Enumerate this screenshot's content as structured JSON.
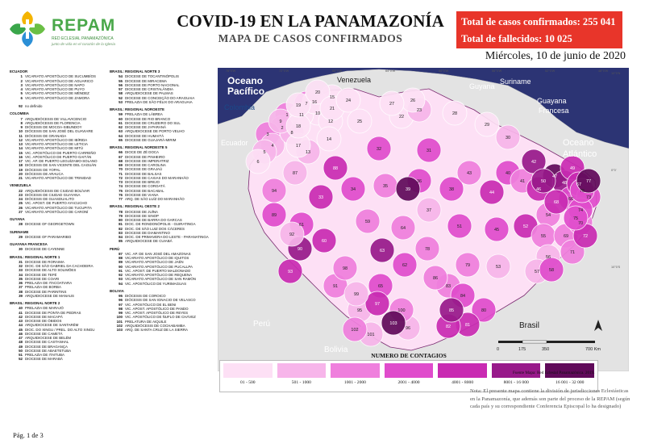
{
  "header": {
    "brand": "REPAM",
    "brand_sub": "RED ECLESIAL PANAMAZÓNICA",
    "brand_tag": "junto de vida en el corazón de la Iglesia",
    "title": "COVID-19 EN LA PANAMAZONÍA",
    "subtitle": "MAPA DE CASOS CONFIRMADOS",
    "total_cases": "Total de casos confirmados: 255 041",
    "total_deaths": "Total de fallecidos: 10 025",
    "date": "Miércoles, 10 de junio de 2020",
    "accent_color": "#e8352a"
  },
  "legend_left": {
    "col1": [
      {
        "group": "ECUADOR",
        "entries": [
          {
            "n": "1",
            "name": "VICARIATO APOSTÓLICO DE SUCUMBÍOS"
          },
          {
            "n": "2",
            "name": "VICARIATO APOSTÓLICO DE AGUARICO"
          },
          {
            "n": "3",
            "name": "VICARIATO APOSTÓLICO DE NAPO"
          },
          {
            "n": "4",
            "name": "VICARIATO APOSTÓLICO DE PUYO"
          },
          {
            "n": "5",
            "name": "VICARIATO APOSTÓLICO DE MÉNDEZ"
          },
          {
            "n": "6",
            "name": "VICARIATO APOSTÓLICO DE ZAMORA"
          },
          {
            "n": "",
            "name": ""
          },
          {
            "n": "92",
            "name": "no definido"
          }
        ]
      },
      {
        "group": "COLOMBIA",
        "entries": [
          {
            "n": "7",
            "name": "ARQUIDIÓCESIS DE VILLAVICENCIO"
          },
          {
            "n": "8",
            "name": "ARQUIDIÓCESIS DE FLORENCIA"
          },
          {
            "n": "9",
            "name": "DIÓCESIS DE MOCOA-SIBUNDOY"
          },
          {
            "n": "10",
            "name": "DIÓCESIS DE SAN JOSÉ DEL GUAVIARE"
          },
          {
            "n": "11",
            "name": "DIÓCESIS DE GRANADA"
          },
          {
            "n": "12",
            "name": "VICARIATO APOSTÓLICO DE IBÍRIDA"
          },
          {
            "n": "13",
            "name": "VICARIATO APOSTÓLICO DE LETICIA"
          },
          {
            "n": "14",
            "name": "VICARIATO APOSTÓLICO DE MITÚ"
          },
          {
            "n": "15",
            "name": "VIC. APOSTÓLICO DE PUERTO CARREÑO"
          },
          {
            "n": "16",
            "name": "VIC. APOSTÓLICO DE PUERTO GAITÁN"
          },
          {
            "n": "17",
            "name": "VIC. AP. DE PUERTO LEGUÍZAMO-SOLANO"
          },
          {
            "n": "18",
            "name": "DIÓCESIS DE SAN VICENTE DEL CAGUÁN"
          },
          {
            "n": "19",
            "name": "DIÓCESIS DE YOPAL"
          },
          {
            "n": "20",
            "name": "DIÓCESIS DE ARAUCA"
          },
          {
            "n": "21",
            "name": "VICARIATO APOSTÓLICO DE TRINIDAD"
          }
        ]
      },
      {
        "group": "VENEZUELA",
        "entries": [
          {
            "n": "22",
            "name": "ARQUIDIÓCESIS DE CIUDAD BOLÍVAR"
          },
          {
            "n": "23",
            "name": "DIÓCESIS DE CIUDAD GUAYANA"
          },
          {
            "n": "24",
            "name": "DIÓCESIS DE GUASDUALITO"
          },
          {
            "n": "25",
            "name": "VIC. APOST. DE PUERTO AYACUCHO"
          },
          {
            "n": "26",
            "name": "VICARIATO APOSTÓLICO DE TUCUPITA"
          },
          {
            "n": "27",
            "name": "VICARIATO APOSTÓLICO DE CARONÍ"
          }
        ]
      },
      {
        "group": "GUYANA",
        "entries": [
          {
            "n": "28",
            "name": "DIOCESE OF GEORGETOWN"
          }
        ]
      },
      {
        "group": "SURINAME",
        "entries": [
          {
            "n": "29",
            "name": "DIOCESE OF PARAMARIBO"
          }
        ]
      },
      {
        "group": "GUAYANA FRANCESA",
        "entries": [
          {
            "n": "30",
            "name": "DIOCESE DE CAYENNE"
          }
        ]
      },
      {
        "group": "BRASIL: REGIONAL NORTE 1",
        "entries": [
          {
            "n": "31",
            "name": "DIOCESE DE RORAIMA"
          },
          {
            "n": "32",
            "name": "DIOC. DE SÃO GABRIEL DA CACHOEIRA"
          },
          {
            "n": "33",
            "name": "DIOCESE DE ALTO SOLIMÕES"
          },
          {
            "n": "34",
            "name": "DIOCESE DE TEFÉ"
          },
          {
            "n": "35",
            "name": "DIOCESE DE COARI"
          },
          {
            "n": "36",
            "name": "PRELAZIA DE ITACOATIARA"
          },
          {
            "n": "37",
            "name": "PRELAZIA DE BORBA"
          },
          {
            "n": "38",
            "name": "DIOCESE DE PARINTINS"
          },
          {
            "n": "39",
            "name": "ARQUIDIOCESE DE MANAUS"
          }
        ]
      },
      {
        "group": "BRASIL: REGIONAL NORTE 2",
        "entries": [
          {
            "n": "40",
            "name": "PRELAZIA DE MARAJÓ"
          },
          {
            "n": "41",
            "name": "DIOCESE DE PONTA DE PEDRAS"
          },
          {
            "n": "42",
            "name": "DIOCESE DE MACAPÁ"
          },
          {
            "n": "43",
            "name": "DIOCESE DE ÓBIDOS"
          },
          {
            "n": "44",
            "name": "ARQUIDIOCESE DE SANTARÉM"
          },
          {
            "n": "45",
            "name": "DIOC. DO XINGU / PREL. DO ALTO XINGU"
          },
          {
            "n": "46",
            "name": "DIOCESE DE CAMETÁ"
          },
          {
            "n": "47",
            "name": "ARQUIDIOCESE DE BELÉM"
          },
          {
            "n": "48",
            "name": "DIOCESE DE CASTANHAL"
          },
          {
            "n": "49",
            "name": "DIOCESE DE BRAGANÇA"
          },
          {
            "n": "50",
            "name": "DIOCESE DE ABAETETUBA"
          },
          {
            "n": "51",
            "name": "PRELAZIA DE ITAITUBA"
          },
          {
            "n": "52",
            "name": "DIOCESE DE MARABÁ"
          }
        ]
      }
    ],
    "col2": [
      {
        "group": "BRASIL: REGIONAL NORTE 3",
        "entries": [
          {
            "n": "54",
            "name": "DIOCESE DE TOCANTINÓPOLIS"
          },
          {
            "n": "55",
            "name": "DIOCESE DE MIRACEMA"
          },
          {
            "n": "56",
            "name": "DIOCESE DE PORTO NACIONAL"
          },
          {
            "n": "57",
            "name": "DIOCESE DE CRISTALÂNDIA"
          },
          {
            "n": "58",
            "name": "ARQUIDIOCESE DE PALMAS"
          },
          {
            "n": "52",
            "name": "DIOCESE DE CONCEIÇÃO DO ARAGUAIA"
          },
          {
            "n": "53",
            "name": "PRELAZIA DE SÃO FÉLIX DO ARAGUAIA"
          }
        ]
      },
      {
        "group": "BRASIL: REGIONAL NOROESTE",
        "entries": [
          {
            "n": "59",
            "name": "PRELAZIA DE LÁBREA"
          },
          {
            "n": "60",
            "name": "DIOCESE DE RIO BRANCO"
          },
          {
            "n": "61",
            "name": "DIOCESE DE CRUZEIRO DO SUL"
          },
          {
            "n": "62",
            "name": "DIOCESE DE JI-PARANÁ"
          },
          {
            "n": "63",
            "name": "ARQUIDIOCESE DE PORTO VELHO"
          },
          {
            "n": "64",
            "name": "DIOCESE DE HUMAITÁ"
          },
          {
            "n": "65",
            "name": "DIOCESE DE GUAJARÁ-MIRIM"
          }
        ]
      },
      {
        "group": "BRASIL: REGIONAL NORDESTE 5",
        "entries": [
          {
            "n": "66",
            "name": "DIOCE DE ZÉ DOCA"
          },
          {
            "n": "67",
            "name": "DIOCESE DE PINHEIRO"
          },
          {
            "n": "68",
            "name": "DIOCESE DE IMPERATRIZ"
          },
          {
            "n": "69",
            "name": "DIOCESE DE CAROLINA"
          },
          {
            "n": "70",
            "name": "DIOCESE DE GRAJAÚ"
          },
          {
            "n": "71",
            "name": "DIOCESE DE BALSAS"
          },
          {
            "n": "72",
            "name": "DIOCESE DE CAXIAS DO MARANHÃO"
          },
          {
            "n": "73",
            "name": "DIOCESE DE BREJO"
          },
          {
            "n": "74",
            "name": "DIOCESE DE COROATÁ"
          },
          {
            "n": "75",
            "name": "DIOCESE DE BACABAL"
          },
          {
            "n": "76",
            "name": "DIOCESE DE VIANA"
          },
          {
            "n": "77",
            "name": "ARQ. DE SÃO LUÍZ DO MARANHÃO"
          }
        ]
      },
      {
        "group": "BRASIL: REGIONAL OESTE 2",
        "entries": [
          {
            "n": "78",
            "name": "DIOCESE DE JUÍNA"
          },
          {
            "n": "79",
            "name": "DIOCESE DE SINOP"
          },
          {
            "n": "80",
            "name": "DIOCESE DE BARRA DO GARCAS"
          },
          {
            "n": "81",
            "name": "DIOC. DE RONDONÓPOLIS - GUIRATINGA"
          },
          {
            "n": "82",
            "name": "DIOC. DE SÃO LUIZ DOS CÁCERES"
          },
          {
            "n": "83",
            "name": "DIOCESE DE DIAMANTINO"
          },
          {
            "n": "84",
            "name": "DIOC. DE PRIMAVERA DO LESTE - PARANATINGA"
          },
          {
            "n": "85",
            "name": "ARQUIDIOCESE DE CUIABÁ"
          }
        ]
      },
      {
        "group": "PERÚ",
        "entries": [
          {
            "n": "87",
            "name": "VIC. AP. DE SAN JOSÉ DEL AMAZONAS"
          },
          {
            "n": "88",
            "name": "VICARIATO APOSTÓLICO DE IQUITOS"
          },
          {
            "n": "89",
            "name": "VICARIATO APOSTÓLICO DE JAÉN"
          },
          {
            "n": "90",
            "name": "VICARIATO APOSTÓLICO DE PUCALLPA"
          },
          {
            "n": "91",
            "name": "VIC. APOST. DE PUERTO MALDONADO"
          },
          {
            "n": "92",
            "name": "VICARIATO APOSTÓLICO DE REQUENA"
          },
          {
            "n": "93",
            "name": "VICARIATO APOSTÓLICO DE SAN RAMÓN"
          },
          {
            "n": "94",
            "name": "VIC. APOSTÓLICO DE YURIMAGUAS"
          }
        ]
      },
      {
        "group": "BOLIVIA",
        "entries": [
          {
            "n": "95",
            "name": "DIÓCESIS DE COROICO"
          },
          {
            "n": "96",
            "name": "DIÓCESIS DE SAN IGNACIO DE VELASCO"
          },
          {
            "n": "97",
            "name": "VIC. APOSTÓLICO DE EL BENI"
          },
          {
            "n": "98",
            "name": "VIC. APOST. APOSTÓLICO DE PANDO"
          },
          {
            "n": "99",
            "name": "VIC. APOST. APOSTÓLICO DE REYES"
          },
          {
            "n": "100",
            "name": "VIC. APOSTÓLICO DE ÑUFLO DE CHÁVEZ"
          },
          {
            "n": "101",
            "name": "PRELATURA DE AIQUILE"
          },
          {
            "n": "102",
            "name": "ARQUIDIÓCESIS DE COCHABAMBA"
          },
          {
            "n": "103",
            "name": "ARQ. DE SANTA CRUZ DE LA SIERRA"
          }
        ]
      }
    ]
  },
  "map": {
    "ocean_color": "#2c3474",
    "land_outside_color": "#e3e3e3",
    "labels": {
      "oceano_pacifico": [
        "Oceano",
        "Pacífico"
      ],
      "oceano_atlantico": [
        "Oceano",
        "Atlántico"
      ],
      "venezuela": "Venezuela",
      "guyana": "Guyana",
      "suriname": "Suriname",
      "guayana_francesa": [
        "Guayana",
        "Francesa"
      ],
      "colombia": "Colombia",
      "ecuador": "Ecuador",
      "peru": "Perú",
      "bolivia": "Bolivia",
      "brasil": "Brasil"
    },
    "scale_bar_labels": [
      "0",
      "175",
      "350",
      "700 Km"
    ],
    "coord_top": [
      "76°0'W",
      "72°0'W",
      "68°0'W",
      "64°0'W",
      "60°0'W",
      "56°0'W",
      "52°0'W",
      "48°0'W"
    ],
    "coord_right": [
      "10°0'N",
      "0°0'",
      "10°0'S"
    ],
    "regions": [
      {
        "n": "1",
        "level": 3
      },
      {
        "n": "2",
        "level": 2
      },
      {
        "n": "3",
        "level": 3
      },
      {
        "n": "4",
        "level": 2
      },
      {
        "n": "5",
        "level": 2
      },
      {
        "n": "6",
        "level": 1
      },
      {
        "n": "7",
        "level": 3
      },
      {
        "n": "8",
        "level": 2
      },
      {
        "n": "9",
        "level": 2
      },
      {
        "n": "10",
        "level": 1
      },
      {
        "n": "11",
        "level": 1
      },
      {
        "n": "12",
        "level": 1
      },
      {
        "n": "13",
        "level": 2
      },
      {
        "n": "14",
        "level": 1
      },
      {
        "n": "15",
        "level": 1
      },
      {
        "n": "16",
        "level": 1
      },
      {
        "n": "17",
        "level": 1
      },
      {
        "n": "18",
        "level": 1
      },
      {
        "n": "19",
        "level": 1
      },
      {
        "n": "20",
        "level": 1
      },
      {
        "n": "21",
        "level": 1
      },
      {
        "n": "22",
        "level": 1
      },
      {
        "n": "23",
        "level": 2
      },
      {
        "n": "24",
        "level": 1
      },
      {
        "n": "25",
        "level": 1
      },
      {
        "n": "26",
        "level": 1
      },
      {
        "n": "27",
        "level": 1
      },
      {
        "n": "28",
        "level": 1
      },
      {
        "n": "29",
        "level": 1
      },
      {
        "n": "30",
        "level": 2
      },
      {
        "n": "31",
        "level": 4
      },
      {
        "n": "32",
        "level": 4
      },
      {
        "n": "33",
        "level": 5
      },
      {
        "n": "34",
        "level": 4
      },
      {
        "n": "35",
        "level": 3
      },
      {
        "n": "36",
        "level": 4
      },
      {
        "n": "37",
        "level": 2
      },
      {
        "n": "38",
        "level": 4
      },
      {
        "n": "39",
        "level": 7
      },
      {
        "n": "40",
        "level": 4
      },
      {
        "n": "41",
        "level": 3
      },
      {
        "n": "42",
        "level": 6
      },
      {
        "n": "43",
        "level": 3
      },
      {
        "n": "44",
        "level": 5
      },
      {
        "n": "45",
        "level": 4
      },
      {
        "n": "46",
        "level": 5
      },
      {
        "n": "47",
        "level": 7
      },
      {
        "n": "48",
        "level": 6
      },
      {
        "n": "49",
        "level": 5
      },
      {
        "n": "50",
        "level": 6
      },
      {
        "n": "51",
        "level": 4
      },
      {
        "n": "52",
        "level": 5
      },
      {
        "n": "53",
        "level": 2
      },
      {
        "n": "54",
        "level": 3
      },
      {
        "n": "55",
        "level": 3
      },
      {
        "n": "56",
        "level": 2
      },
      {
        "n": "57",
        "level": 2
      },
      {
        "n": "58",
        "level": 4
      },
      {
        "n": "59",
        "level": 3
      },
      {
        "n": "60",
        "level": 5
      },
      {
        "n": "61",
        "level": 4
      },
      {
        "n": "62",
        "level": 4
      },
      {
        "n": "63",
        "level": 6
      },
      {
        "n": "64",
        "level": 3
      },
      {
        "n": "65",
        "level": 4
      },
      {
        "n": "66",
        "level": 4
      },
      {
        "n": "67",
        "level": 5
      },
      {
        "n": "68",
        "level": 5
      },
      {
        "n": "69",
        "level": 3
      },
      {
        "n": "70",
        "level": 3
      },
      {
        "n": "71",
        "level": 3
      },
      {
        "n": "72",
        "level": 5
      },
      {
        "n": "73",
        "level": 4
      },
      {
        "n": "74",
        "level": 4
      },
      {
        "n": "75",
        "level": 4
      },
      {
        "n": "76",
        "level": 4
      },
      {
        "n": "77",
        "level": 7
      },
      {
        "n": "78",
        "level": 3
      },
      {
        "n": "79",
        "level": 3
      },
      {
        "n": "80",
        "level": 4
      },
      {
        "n": "81",
        "level": 5
      },
      {
        "n": "82",
        "level": 5
      },
      {
        "n": "83",
        "level": 3
      },
      {
        "n": "84",
        "level": 4
      },
      {
        "n": "85",
        "level": 6
      },
      {
        "n": "86",
        "level": 3
      },
      {
        "n": "87",
        "level": 2
      },
      {
        "n": "88",
        "level": 5
      },
      {
        "n": "89",
        "level": 4
      },
      {
        "n": "90",
        "level": 6
      },
      {
        "n": "91",
        "level": 3
      },
      {
        "n": "92",
        "level": 2
      },
      {
        "n": "93",
        "level": 5
      },
      {
        "n": "94",
        "level": 3
      },
      {
        "n": "95",
        "level": 2
      },
      {
        "n": "96",
        "level": 2
      },
      {
        "n": "97",
        "level": 5
      },
      {
        "n": "98",
        "level": 3
      },
      {
        "n": "99",
        "level": 2
      },
      {
        "n": "100",
        "level": 3
      },
      {
        "n": "101",
        "level": 2
      },
      {
        "n": "102",
        "level": 3
      },
      {
        "n": "103",
        "level": 7
      }
    ]
  },
  "contagion_scale": {
    "title": "NUMERO DE CONTAGIOS",
    "bins": [
      {
        "label": "01 - 500",
        "color": "#fde0f5"
      },
      {
        "label": "501 - 1000",
        "color": "#f7b5ea"
      },
      {
        "label": "1001 - 2000",
        "color": "#ef7fdd"
      },
      {
        "label": "2001 - 4000",
        "color": "#e04ccc"
      },
      {
        "label": "4001 - 8000",
        "color": "#c92bb2"
      },
      {
        "label": "8001 - 16 000",
        "color": "#98198a"
      },
      {
        "label": "16 001 - 32 000",
        "color": "#600a5a"
      }
    ]
  },
  "source": "Fuente Mapa: Red Eclesial Panamazónica. 2019.",
  "note": "Nota: El presente mapa contiene la división de jurisdicciones Eclesiásticas en la Panamazonía, que además son parte del proceso de la REPAM (según cada país y su correspondiente Conferencia Episcopal lo ha designado)",
  "page": "Pág. 1 de 3"
}
